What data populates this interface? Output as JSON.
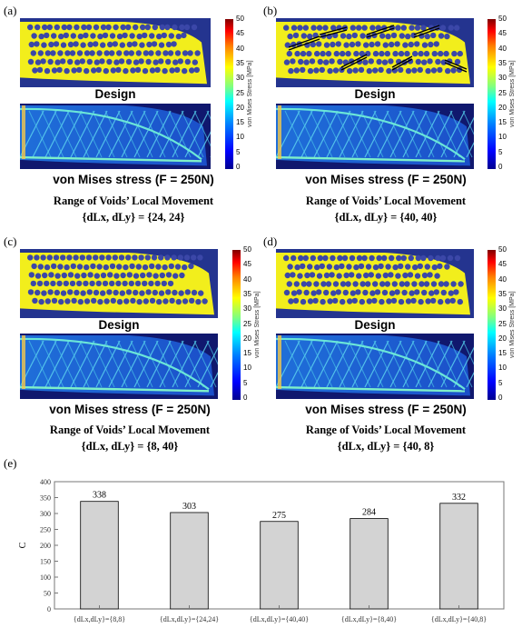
{
  "panels": [
    {
      "label": "(a)",
      "design_caption": "Design",
      "stress_caption": "von Mises stress (F = 250N)",
      "range_title": "Range of Voids’ Local Movement",
      "range_values": "{dLx, dLy} = {24, 24}"
    },
    {
      "label": "(b)",
      "design_caption": "Design",
      "stress_caption": "von Mises stress (F = 250N)",
      "range_title": "Range of Voids’ Local Movement",
      "range_values": "{dLx, dLy} = {40, 40}"
    },
    {
      "label": "(c)",
      "design_caption": "Design",
      "stress_caption": "von Mises stress (F = 250N)",
      "range_title": "Range of Voids’ Local Movement",
      "range_values": "{dLx, dLy} = {8, 40}"
    },
    {
      "label": "(d)",
      "design_caption": "Design",
      "stress_caption": "von Mises stress (F = 250N)",
      "range_title": "Range of Voids’ Local Movement",
      "range_values": "{dLx, dLy} = {40, 8}"
    }
  ],
  "colorbar": {
    "ticks": [
      "50",
      "45",
      "40",
      "35",
      "30",
      "25",
      "20",
      "15",
      "10",
      "5",
      "0"
    ],
    "unit": "von Mises Stress [MPa]"
  },
  "colors": {
    "design_bg": "#24348f",
    "material": "#f2ee1c",
    "void": "#3b47a8",
    "stress_bg": "#10186e"
  },
  "chart_label": "(e)",
  "chart_data": {
    "type": "bar",
    "categories": [
      "{dLx,dLy}={8,8}",
      "{dLx,dLy}={24,24}",
      "{dLx,dLy}={40,40}",
      "{dLx,dLy}={8,40}",
      "{dLx,dLy}={40,8}"
    ],
    "values": [
      338,
      303,
      275,
      284,
      332
    ],
    "ylabel": "C",
    "ylim": [
      0,
      400
    ],
    "yticks": [
      0,
      50,
      100,
      150,
      200,
      250,
      300,
      350,
      400
    ],
    "bar_color": "#d3d3d3",
    "data_labels": true
  }
}
